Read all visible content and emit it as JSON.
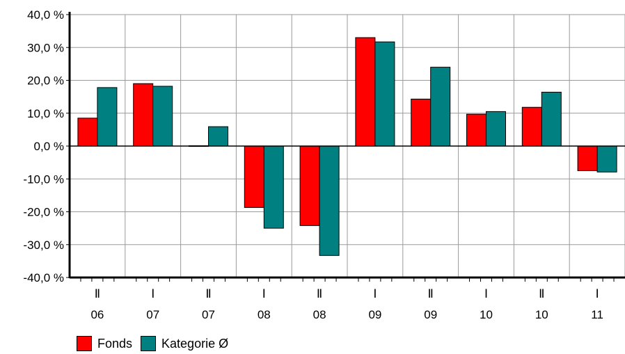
{
  "chart_data": {
    "type": "bar",
    "title": "",
    "xlabel": "",
    "ylabel": "",
    "categories": [
      {
        "half": "Ⅱ",
        "year": "06"
      },
      {
        "half": "Ⅰ",
        "year": "07"
      },
      {
        "half": "Ⅱ",
        "year": "07"
      },
      {
        "half": "Ⅰ",
        "year": "08"
      },
      {
        "half": "Ⅱ",
        "year": "08"
      },
      {
        "half": "Ⅰ",
        "year": "09"
      },
      {
        "half": "Ⅱ",
        "year": "09"
      },
      {
        "half": "Ⅰ",
        "year": "10"
      },
      {
        "half": "Ⅱ",
        "year": "10"
      },
      {
        "half": "Ⅰ",
        "year": "11"
      }
    ],
    "series": [
      {
        "name": "Fonds",
        "color": "#ff0000",
        "values": [
          8.5,
          19.0,
          0.1,
          -18.7,
          -24.2,
          33.0,
          14.3,
          9.7,
          11.8,
          -7.5
        ]
      },
      {
        "name": "Kategorie Ø",
        "color": "#008080",
        "values": [
          17.8,
          18.2,
          5.9,
          -25.0,
          -33.3,
          31.7,
          24.0,
          10.5,
          16.4,
          -7.9
        ]
      }
    ],
    "ylim": [
      -40,
      40
    ],
    "yticks": [
      {
        "value": 40,
        "label": "40,0 %"
      },
      {
        "value": 30,
        "label": "30,0 %"
      },
      {
        "value": 20,
        "label": "20,0 %"
      },
      {
        "value": 10,
        "label": "10,0 %"
      },
      {
        "value": 0,
        "label": "0,0 %"
      },
      {
        "value": -10,
        "label": "-10,0 %"
      },
      {
        "value": -20,
        "label": "-20,0 %"
      },
      {
        "value": -30,
        "label": "-30,0 %"
      },
      {
        "value": -40,
        "label": "-40,0 %"
      }
    ],
    "grid": true,
    "legend_position": "bottom-left"
  }
}
